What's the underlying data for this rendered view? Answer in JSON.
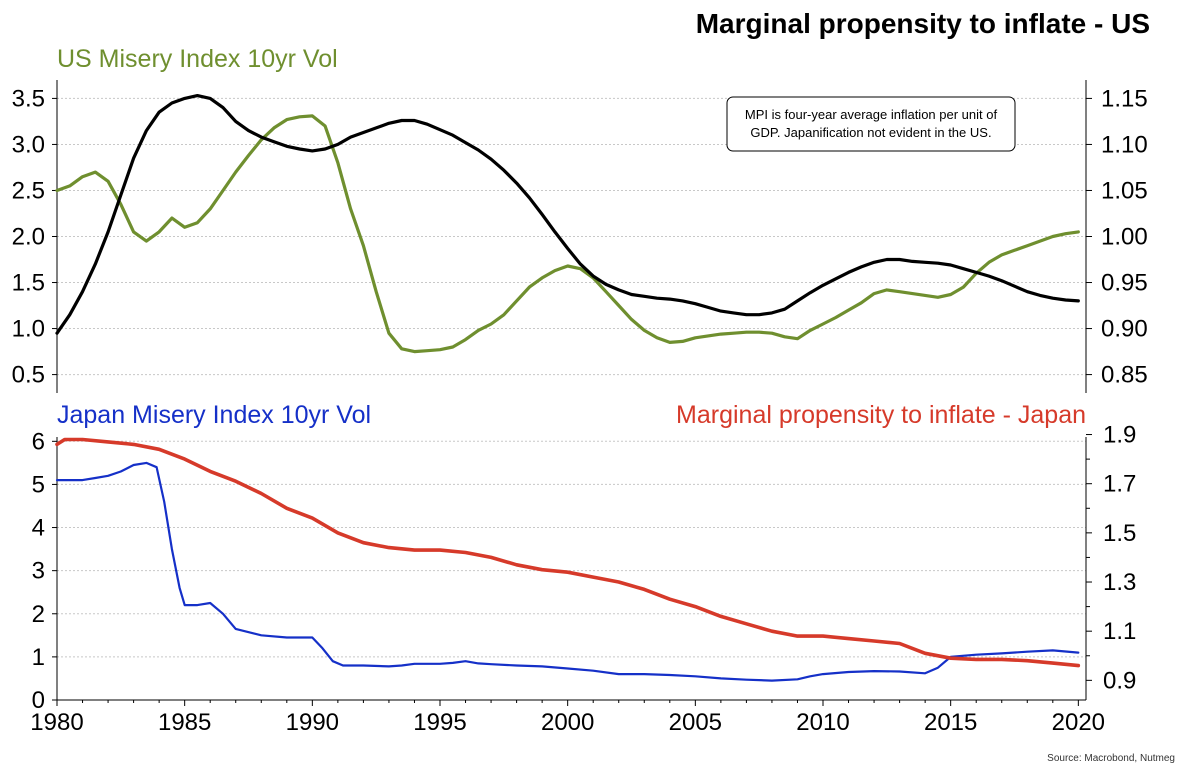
{
  "title": "Marginal propensity to inflate - US",
  "source": "Source: Macrobond, Nutmeg",
  "colors": {
    "us_vol": "#6f8f2f",
    "us_mpi": "#000000",
    "jp_vol": "#1530c8",
    "jp_mpi": "#d63a2a"
  },
  "chart_data": [
    {
      "type": "line",
      "panel": "top",
      "left_label": "US Misery Index 10yr Vol",
      "note_lines": [
        "MPI is four-year average inflation per unit of",
        "GDP.  Japanification not evident in the US."
      ],
      "xlim": [
        1980,
        2020.3
      ],
      "ylim_left": [
        0.3,
        3.7
      ],
      "ylim_right": [
        0.83,
        1.17
      ],
      "left_ticks": [
        "0.5",
        "1.0",
        "1.5",
        "2.0",
        "2.5",
        "3.0",
        "3.5"
      ],
      "right_ticks": [
        "0.85",
        "0.90",
        "0.95",
        "1.00",
        "1.05",
        "1.10",
        "1.15"
      ],
      "series": [
        {
          "axis": "left",
          "x": [
            1980,
            1980.5,
            1981,
            1981.5,
            1982,
            1982.5,
            1983,
            1983.5,
            1984,
            1984.5,
            1985,
            1985.5,
            1986,
            1986.5,
            1987,
            1987.5,
            1988,
            1988.5,
            1989,
            1989.5,
            1990,
            1990.5,
            1991,
            1991.5,
            1992,
            1992.5,
            1993,
            1993.5,
            1994,
            1994.5,
            1995,
            1995.5,
            1996,
            1996.5,
            1997,
            1997.5,
            1998,
            1998.5,
            1999,
            1999.5,
            2000,
            2000.5,
            2001,
            2001.5,
            2002,
            2002.5,
            2003,
            2003.5,
            2004,
            2004.5,
            2005,
            2005.5,
            2006,
            2006.5,
            2007,
            2007.5,
            2008,
            2008.5,
            2009,
            2009.5,
            2010,
            2010.5,
            2011,
            2011.5,
            2012,
            2012.5,
            2013,
            2013.5,
            2014,
            2014.5,
            2015,
            2015.5,
            2016,
            2016.5,
            2017,
            2017.5,
            2018,
            2018.5,
            2019,
            2019.5,
            2020
          ],
          "values": [
            2.5,
            2.55,
            2.65,
            2.7,
            2.6,
            2.35,
            2.05,
            1.95,
            2.05,
            2.2,
            2.1,
            2.15,
            2.3,
            2.5,
            2.7,
            2.88,
            3.05,
            3.18,
            3.27,
            3.3,
            3.31,
            3.2,
            2.8,
            2.3,
            1.9,
            1.4,
            0.95,
            0.78,
            0.75,
            0.76,
            0.77,
            0.8,
            0.88,
            0.98,
            1.05,
            1.15,
            1.3,
            1.45,
            1.55,
            1.63,
            1.68,
            1.65,
            1.55,
            1.4,
            1.25,
            1.1,
            0.98,
            0.9,
            0.85,
            0.86,
            0.9,
            0.92,
            0.94,
            0.95,
            0.96,
            0.96,
            0.95,
            0.91,
            0.89,
            0.98,
            1.05,
            1.12,
            1.2,
            1.28,
            1.38,
            1.42,
            1.4,
            1.38,
            1.36,
            1.34,
            1.37,
            1.45,
            1.6,
            1.72,
            1.8,
            1.85,
            1.9,
            1.95,
            2.0,
            2.03,
            2.05
          ]
        },
        {
          "axis": "right",
          "x": [
            1980,
            1980.5,
            1981,
            1981.5,
            1982,
            1982.5,
            1983,
            1983.5,
            1984,
            1984.5,
            1985,
            1985.5,
            1986,
            1986.5,
            1987,
            1987.5,
            1988,
            1988.5,
            1989,
            1989.5,
            1990,
            1990.5,
            1991,
            1991.5,
            1992,
            1992.5,
            1993,
            1993.5,
            1994,
            1994.5,
            1995,
            1995.5,
            1996,
            1996.5,
            1997,
            1997.5,
            1998,
            1998.5,
            1999,
            1999.5,
            2000,
            2000.5,
            2001,
            2001.5,
            2002,
            2002.5,
            2003,
            2003.5,
            2004,
            2004.5,
            2005,
            2005.5,
            2006,
            2006.5,
            2007,
            2007.5,
            2008,
            2008.5,
            2009,
            2009.5,
            2010,
            2010.5,
            2011,
            2011.5,
            2012,
            2012.5,
            2013,
            2013.5,
            2014,
            2014.5,
            2015,
            2015.5,
            2016,
            2016.5,
            2017,
            2017.5,
            2018,
            2018.5,
            2019,
            2019.5,
            2020
          ],
          "values": [
            0.895,
            0.915,
            0.94,
            0.97,
            1.005,
            1.045,
            1.085,
            1.115,
            1.135,
            1.145,
            1.15,
            1.153,
            1.15,
            1.14,
            1.125,
            1.115,
            1.108,
            1.103,
            1.098,
            1.095,
            1.093,
            1.095,
            1.1,
            1.108,
            1.113,
            1.118,
            1.123,
            1.126,
            1.126,
            1.122,
            1.116,
            1.11,
            1.102,
            1.094,
            1.084,
            1.072,
            1.058,
            1.042,
            1.024,
            1.005,
            0.987,
            0.97,
            0.957,
            0.948,
            0.942,
            0.937,
            0.935,
            0.933,
            0.932,
            0.93,
            0.927,
            0.923,
            0.919,
            0.917,
            0.915,
            0.915,
            0.917,
            0.921,
            0.93,
            0.939,
            0.947,
            0.954,
            0.961,
            0.967,
            0.972,
            0.975,
            0.975,
            0.973,
            0.972,
            0.971,
            0.969,
            0.965,
            0.961,
            0.957,
            0.952,
            0.946,
            0.94,
            0.936,
            0.933,
            0.931,
            0.93
          ]
        }
      ]
    },
    {
      "type": "line",
      "panel": "bottom",
      "left_label": "Japan Misery Index 10yr Vol",
      "right_label": "Marginal propensity to inflate - Japan",
      "xlim": [
        1980,
        2020.3
      ],
      "ylim_left": [
        0,
        6.1
      ],
      "ylim_right": [
        0.82,
        1.89
      ],
      "x_ticks": [
        "1980",
        "1985",
        "1990",
        "1995",
        "2000",
        "2005",
        "2010",
        "2015",
        "2020"
      ],
      "left_ticks": [
        "0",
        "1",
        "2",
        "3",
        "4",
        "5",
        "6"
      ],
      "right_ticks": [
        "0.9",
        "1.1",
        "1.3",
        "1.5",
        "1.7",
        "1.9"
      ],
      "series": [
        {
          "axis": "left",
          "x": [
            1980,
            1981,
            1981.5,
            1982,
            1982.5,
            1983,
            1983.5,
            1983.9,
            1984.2,
            1984.5,
            1984.8,
            1985,
            1985.5,
            1986,
            1986.5,
            1987,
            1988,
            1989,
            1990,
            1990.4,
            1990.8,
            1991.2,
            1992,
            1993,
            1993.5,
            1994,
            1995,
            1995.5,
            1996,
            1996.5,
            1997,
            1998,
            1999,
            2000,
            2001,
            2002,
            2003,
            2004,
            2005,
            2006,
            2007,
            2008,
            2009,
            2009.5,
            2010,
            2011,
            2012,
            2013,
            2014,
            2014.5,
            2015,
            2016,
            2017,
            2018,
            2019,
            2020
          ],
          "values": [
            5.1,
            5.1,
            5.15,
            5.2,
            5.3,
            5.45,
            5.5,
            5.4,
            4.6,
            3.5,
            2.6,
            2.2,
            2.2,
            2.25,
            2.0,
            1.65,
            1.5,
            1.45,
            1.45,
            1.2,
            0.9,
            0.8,
            0.8,
            0.78,
            0.8,
            0.84,
            0.84,
            0.86,
            0.9,
            0.85,
            0.83,
            0.8,
            0.78,
            0.73,
            0.68,
            0.6,
            0.6,
            0.58,
            0.55,
            0.5,
            0.47,
            0.45,
            0.48,
            0.55,
            0.6,
            0.65,
            0.67,
            0.66,
            0.62,
            0.75,
            1.0,
            1.05,
            1.08,
            1.12,
            1.15,
            1.1
          ]
        },
        {
          "axis": "right",
          "x": [
            1980,
            1980.3,
            1981,
            1982,
            1983,
            1984,
            1985,
            1986,
            1987,
            1988,
            1989,
            1990,
            1991,
            1992,
            1993,
            1994,
            1995,
            1996,
            1997,
            1998,
            1999,
            2000,
            2001,
            2002,
            2003,
            2004,
            2005,
            2006,
            2007,
            2008,
            2009,
            2010,
            2011,
            2012,
            2013,
            2014,
            2015,
            2016,
            2017,
            2018,
            2019,
            2020
          ],
          "values": [
            1.86,
            1.88,
            1.88,
            1.87,
            1.86,
            1.84,
            1.8,
            1.75,
            1.71,
            1.66,
            1.6,
            1.56,
            1.5,
            1.46,
            1.44,
            1.43,
            1.43,
            1.42,
            1.4,
            1.37,
            1.35,
            1.34,
            1.32,
            1.3,
            1.27,
            1.23,
            1.2,
            1.16,
            1.13,
            1.1,
            1.08,
            1.08,
            1.07,
            1.06,
            1.05,
            1.01,
            0.99,
            0.985,
            0.985,
            0.98,
            0.97,
            0.96
          ]
        }
      ]
    }
  ]
}
